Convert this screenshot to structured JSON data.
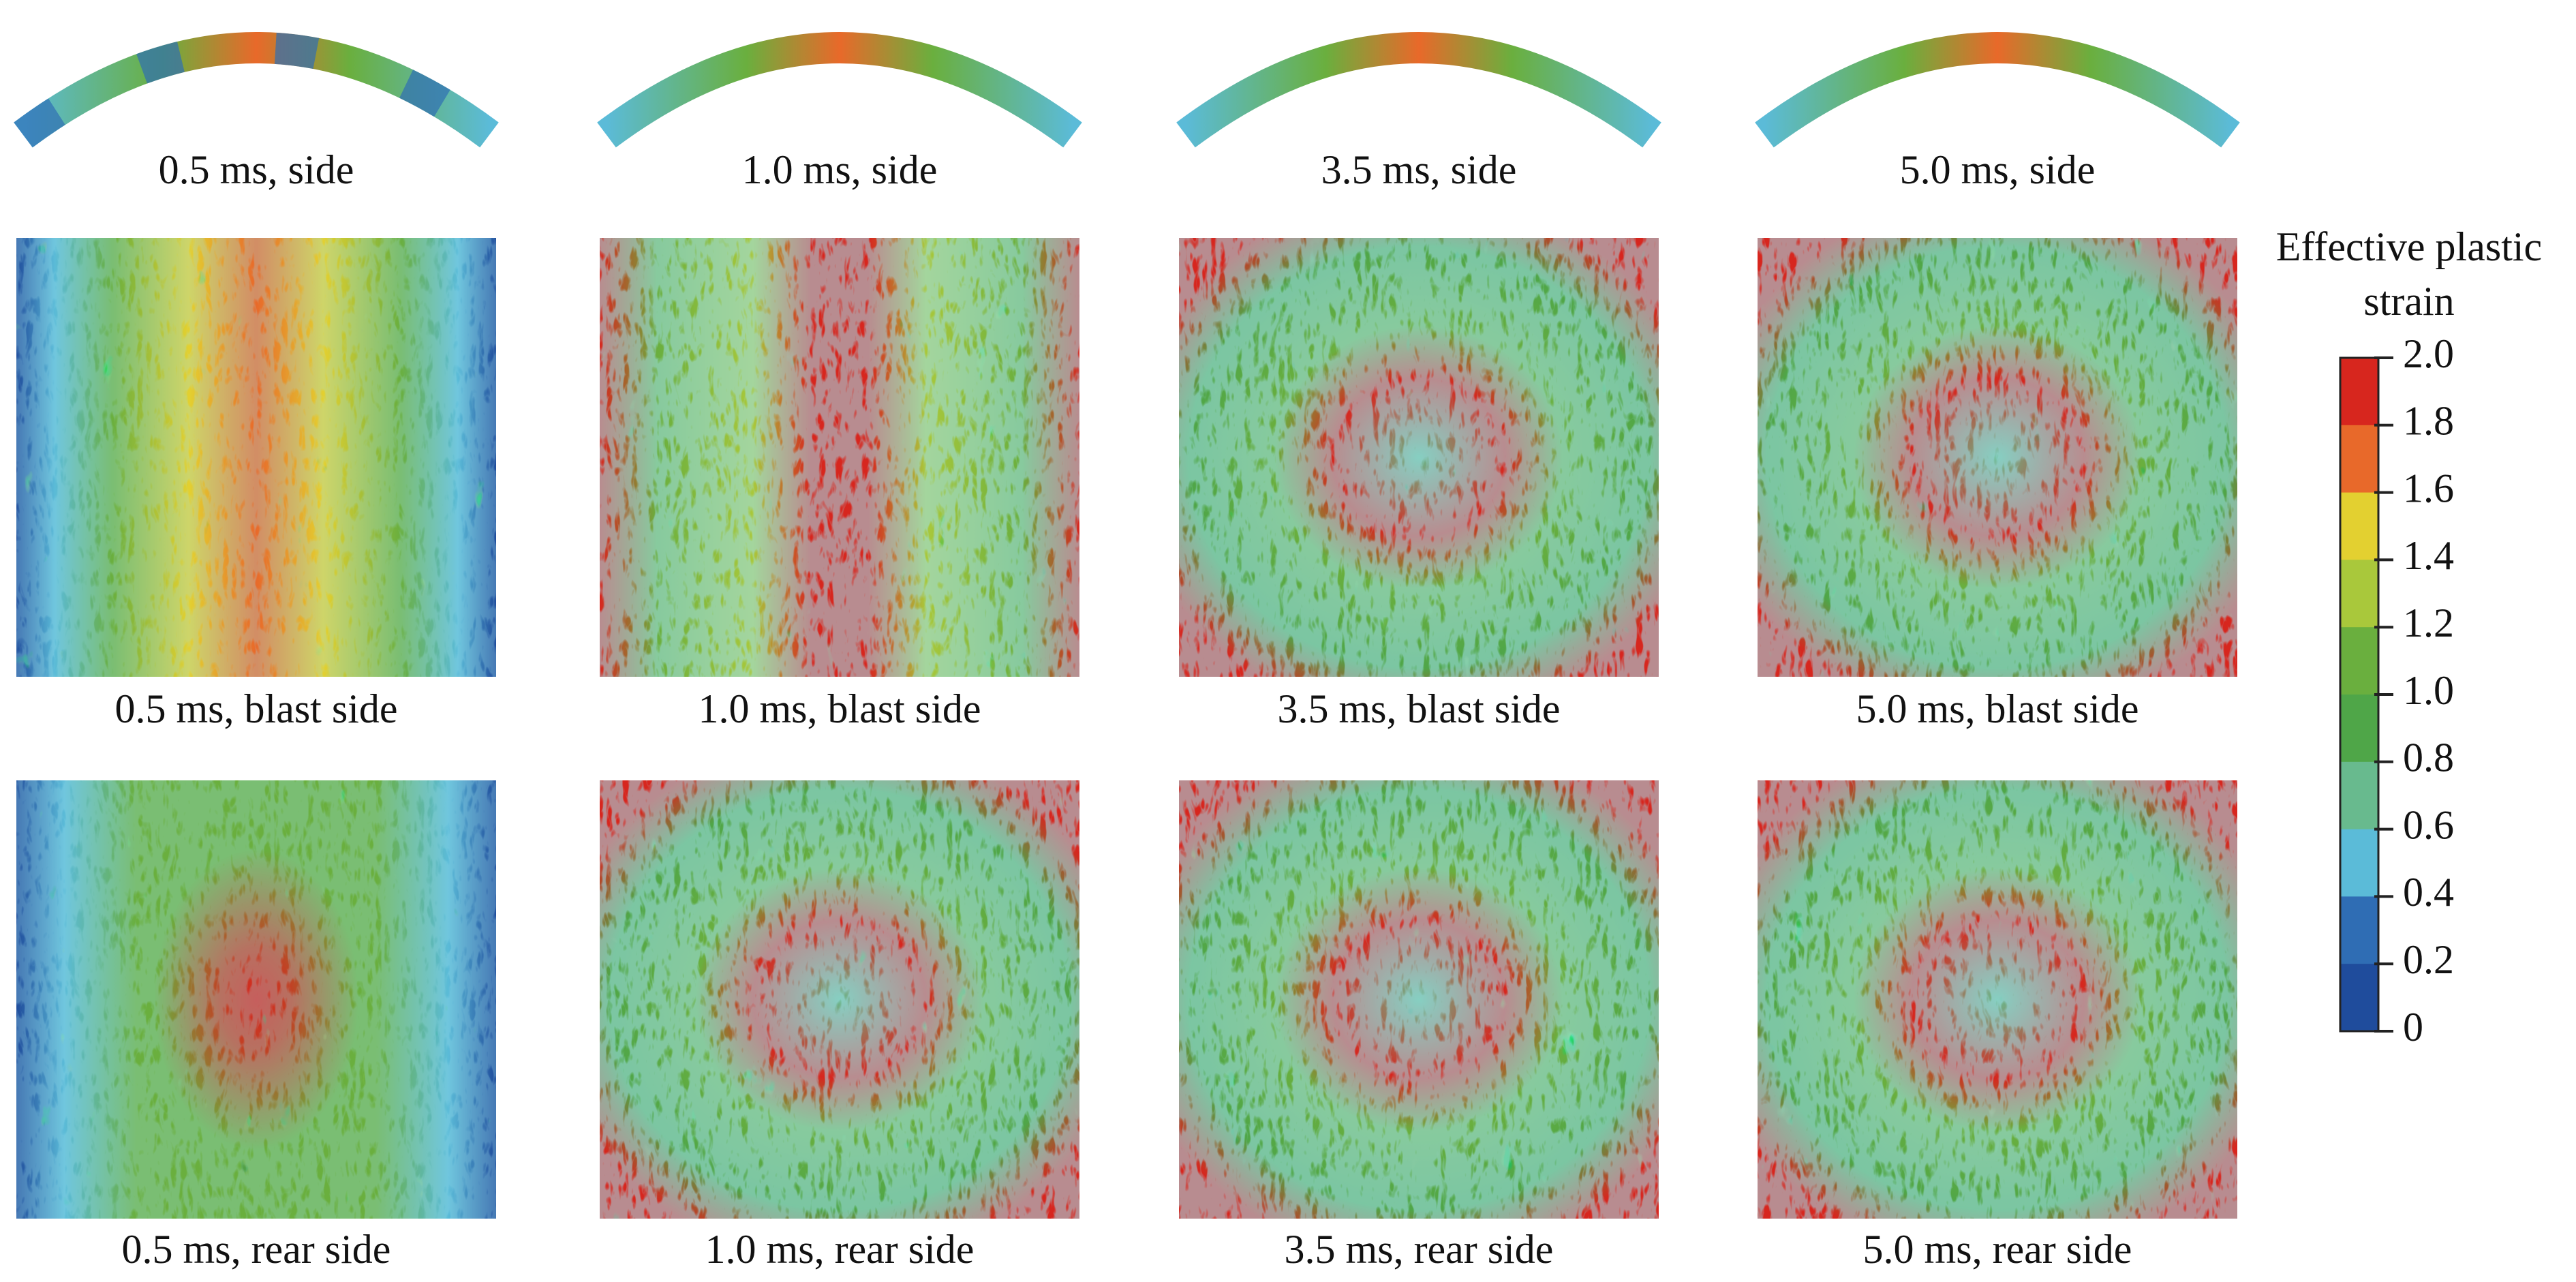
{
  "panels": [
    {
      "caption": "0.5 ms, side"
    },
    {
      "caption": "1.0 ms, side"
    },
    {
      "caption": "3.5 ms, side"
    },
    {
      "caption": "5.0 ms, side"
    },
    {
      "caption": "0.5 ms, blast side"
    },
    {
      "caption": "1.0 ms, blast side"
    },
    {
      "caption": "3.5 ms, blast side"
    },
    {
      "caption": "5.0 ms, blast side"
    },
    {
      "caption": "0.5 ms, rear side"
    },
    {
      "caption": "1.0 ms, rear side"
    },
    {
      "caption": "3.5 ms, rear side"
    },
    {
      "caption": "5.0 ms, rear side"
    }
  ],
  "colorbar": {
    "title": "Effective plastic strain",
    "lim": [
      0,
      {
        "value": 2.0,
        "label": "2.0"
      }
    ],
    "ticks": [
      {
        "value": 2.0,
        "label": "2.0"
      },
      1.8,
      1.6,
      1.4,
      1.2,
      {
        "value": 1.0,
        "label": "1.0"
      },
      0.8,
      0.6,
      0.4,
      0.2,
      0
    ],
    "colors": [
      "#d7261e",
      "#e8692a",
      "#e3d030",
      "#a9c83b",
      "#6aaf3e",
      "#4fa648",
      "#68ba8e",
      "#5bbbd8",
      "#2f6db4",
      "#1f4c9c"
    ]
  }
}
